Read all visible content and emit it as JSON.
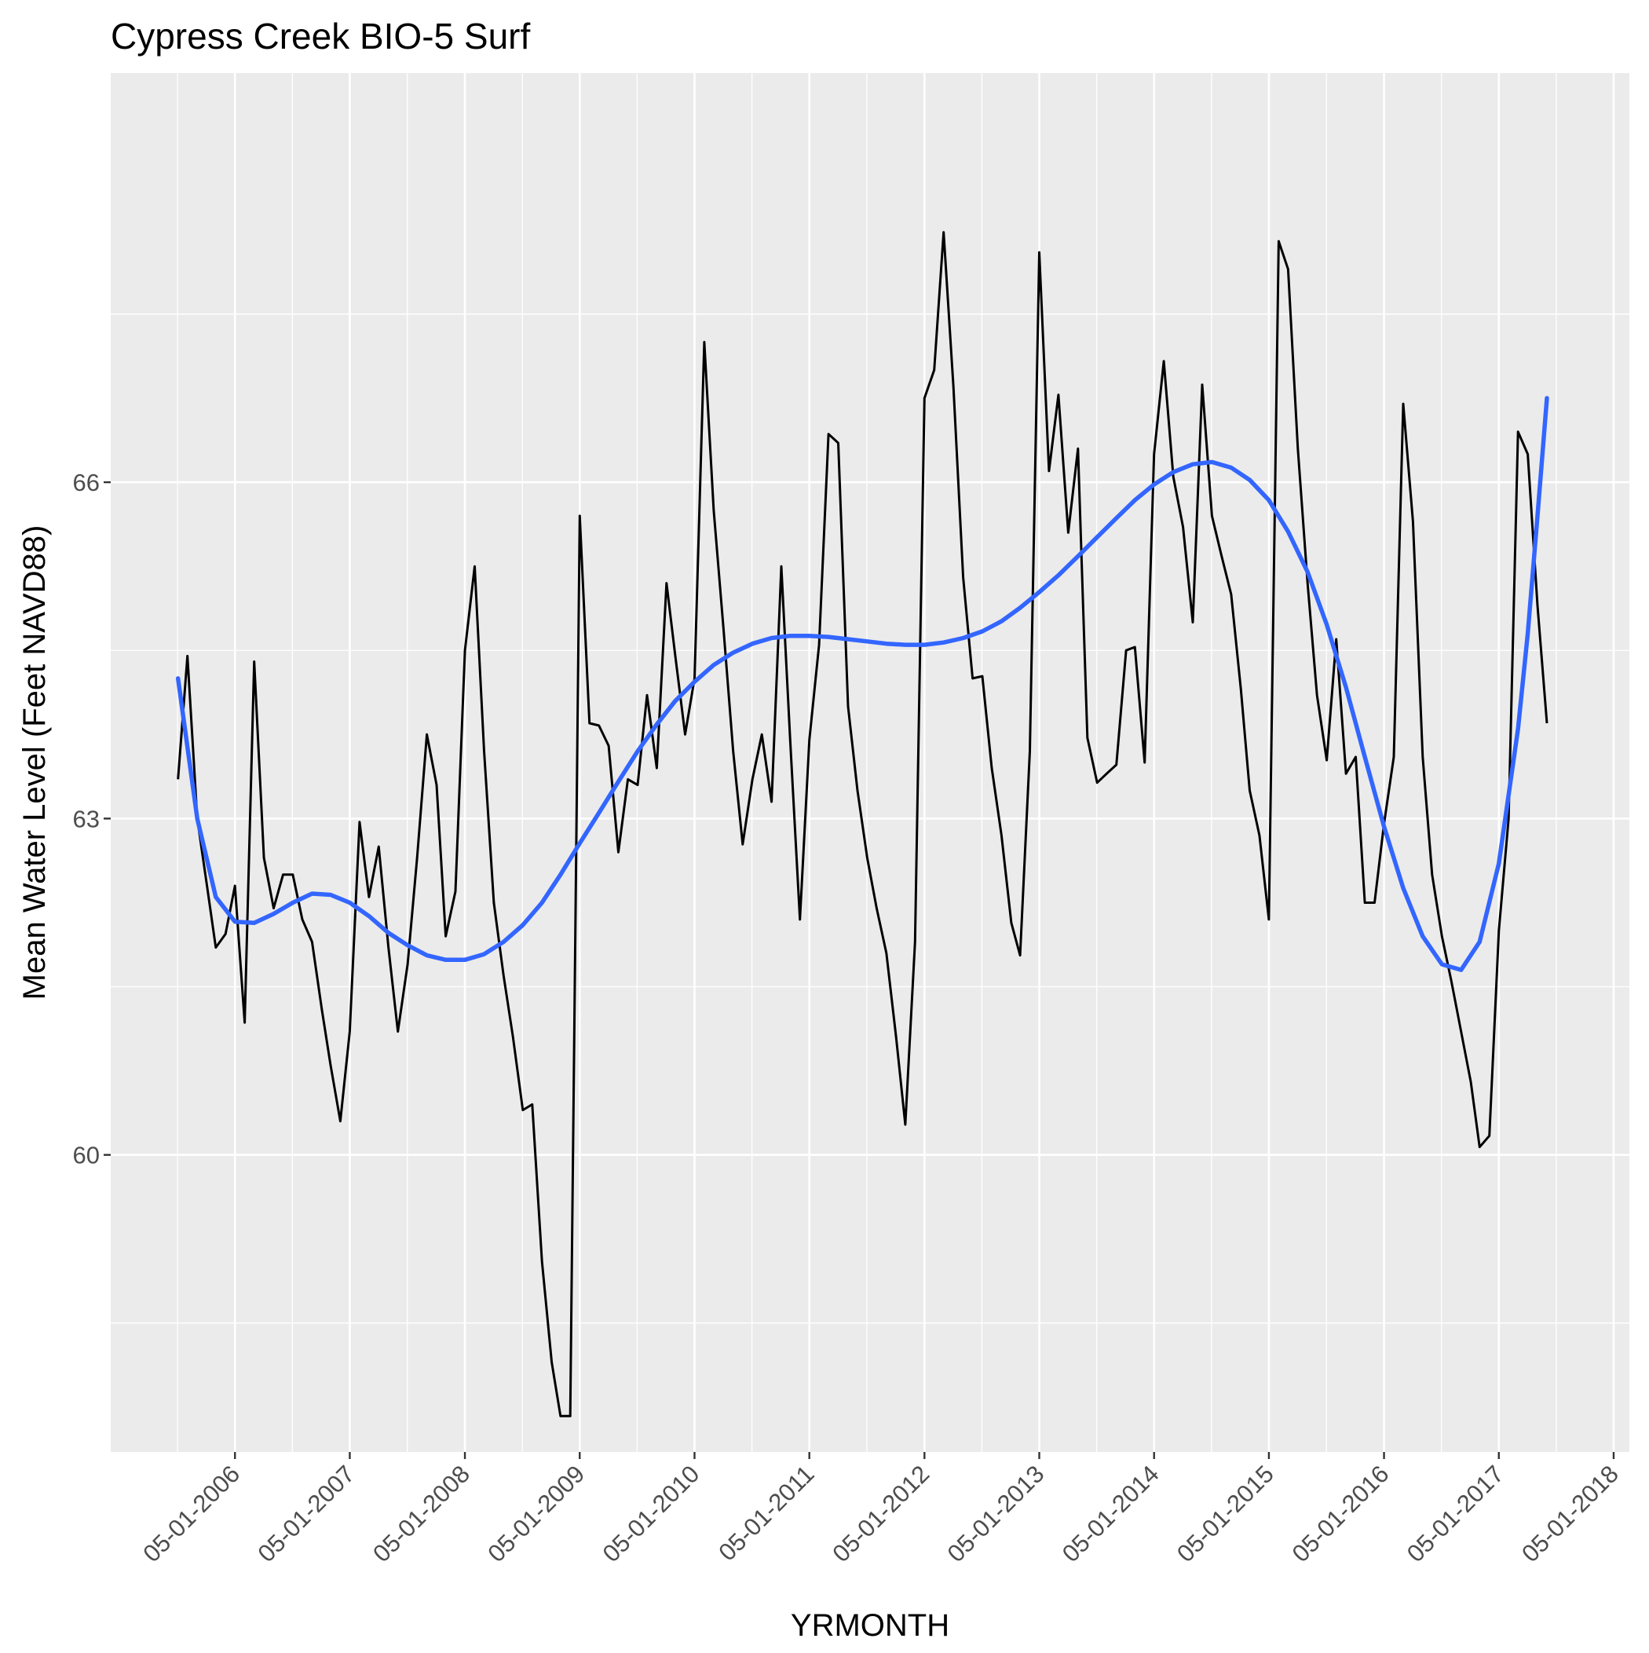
{
  "chart_data": {
    "type": "line",
    "title": "Cypress Creek BIO-5 Surf",
    "xlabel": "YRMONTH",
    "ylabel": "Mean Water Level (Feet NAVD88)",
    "x_type": "date",
    "x_ticks": [
      "05-01-2006",
      "05-01-2007",
      "05-01-2008",
      "05-01-2009",
      "05-01-2010",
      "05-01-2011",
      "05-01-2012",
      "05-01-2013",
      "05-01-2014",
      "05-01-2015",
      "05-01-2016",
      "05-01-2017",
      "05-01-2018"
    ],
    "y_ticks": [
      60,
      63,
      66
    ],
    "ylim": [
      57.35,
      69.65
    ],
    "grid": true,
    "series": [
      {
        "role": "observed",
        "color": "#000000",
        "points": [
          [
            "2005-11-01",
            63.35
          ],
          [
            "2005-12-01",
            64.45
          ],
          [
            "2006-01-01",
            63.0
          ],
          [
            "2006-02-01",
            62.4
          ],
          [
            "2006-03-01",
            61.85
          ],
          [
            "2006-04-01",
            61.97
          ],
          [
            "2006-05-01",
            62.4
          ],
          [
            "2006-06-01",
            61.18
          ],
          [
            "2006-07-01",
            64.4
          ],
          [
            "2006-08-01",
            62.65
          ],
          [
            "2006-09-01",
            62.2
          ],
          [
            "2006-10-01",
            62.5
          ],
          [
            "2006-11-01",
            62.5
          ],
          [
            "2006-12-01",
            62.1
          ],
          [
            "2007-01-01",
            61.9
          ],
          [
            "2007-02-01",
            61.3
          ],
          [
            "2007-03-01",
            60.8
          ],
          [
            "2007-04-01",
            60.3
          ],
          [
            "2007-05-01",
            61.1
          ],
          [
            "2007-06-01",
            62.97
          ],
          [
            "2007-07-01",
            62.3
          ],
          [
            "2007-08-01",
            62.75
          ],
          [
            "2007-09-01",
            61.85
          ],
          [
            "2007-10-01",
            61.1
          ],
          [
            "2007-11-01",
            61.7
          ],
          [
            "2007-12-01",
            62.65
          ],
          [
            "2008-01-01",
            63.75
          ],
          [
            "2008-02-01",
            63.3
          ],
          [
            "2008-03-01",
            61.95
          ],
          [
            "2008-04-01",
            62.35
          ],
          [
            "2008-05-01",
            64.5
          ],
          [
            "2008-06-01",
            65.25
          ],
          [
            "2008-07-01",
            63.6
          ],
          [
            "2008-08-01",
            62.25
          ],
          [
            "2008-09-01",
            61.6
          ],
          [
            "2008-10-01",
            61.05
          ],
          [
            "2008-11-01",
            60.4
          ],
          [
            "2008-12-01",
            60.45
          ],
          [
            "2009-01-01",
            59.05
          ],
          [
            "2009-02-01",
            58.15
          ],
          [
            "2009-03-01",
            57.67
          ],
          [
            "2009-04-01",
            57.67
          ],
          [
            "2009-05-01",
            65.7
          ],
          [
            "2009-06-01",
            63.85
          ],
          [
            "2009-07-01",
            63.83
          ],
          [
            "2009-08-01",
            63.65
          ],
          [
            "2009-09-01",
            62.7
          ],
          [
            "2009-10-01",
            63.35
          ],
          [
            "2009-11-01",
            63.3
          ],
          [
            "2009-12-01",
            64.1
          ],
          [
            "2010-01-01",
            63.45
          ],
          [
            "2010-02-01",
            65.1
          ],
          [
            "2010-03-01",
            64.45
          ],
          [
            "2010-04-01",
            63.75
          ],
          [
            "2010-05-01",
            64.25
          ],
          [
            "2010-06-01",
            67.25
          ],
          [
            "2010-07-01",
            65.75
          ],
          [
            "2010-08-01",
            64.7
          ],
          [
            "2010-09-01",
            63.6
          ],
          [
            "2010-10-01",
            62.77
          ],
          [
            "2010-11-01",
            63.35
          ],
          [
            "2010-12-01",
            63.75
          ],
          [
            "2011-01-01",
            63.15
          ],
          [
            "2011-02-01",
            65.25
          ],
          [
            "2011-03-01",
            63.7
          ],
          [
            "2011-04-01",
            62.1
          ],
          [
            "2011-05-01",
            63.7
          ],
          [
            "2011-06-01",
            64.55
          ],
          [
            "2011-07-01",
            66.43
          ],
          [
            "2011-08-01",
            66.35
          ],
          [
            "2011-09-01",
            64.0
          ],
          [
            "2011-10-01",
            63.25
          ],
          [
            "2011-11-01",
            62.65
          ],
          [
            "2011-12-01",
            62.2
          ],
          [
            "2012-01-01",
            61.8
          ],
          [
            "2012-02-01",
            61.05
          ],
          [
            "2012-03-01",
            60.27
          ],
          [
            "2012-04-01",
            61.9
          ],
          [
            "2012-05-01",
            66.75
          ],
          [
            "2012-06-01",
            67.0
          ],
          [
            "2012-07-01",
            68.23
          ],
          [
            "2012-08-01",
            66.85
          ],
          [
            "2012-09-01",
            65.15
          ],
          [
            "2012-10-01",
            64.25
          ],
          [
            "2012-11-01",
            64.27
          ],
          [
            "2012-12-01",
            63.45
          ],
          [
            "2013-01-01",
            62.85
          ],
          [
            "2013-02-01",
            62.07
          ],
          [
            "2013-03-01",
            61.78
          ],
          [
            "2013-04-01",
            63.6
          ],
          [
            "2013-05-01",
            68.05
          ],
          [
            "2013-06-01",
            66.1
          ],
          [
            "2013-07-01",
            66.78
          ],
          [
            "2013-08-01",
            65.55
          ],
          [
            "2013-09-01",
            66.3
          ],
          [
            "2013-10-01",
            63.72
          ],
          [
            "2013-11-01",
            63.32
          ],
          [
            "2013-12-01",
            63.4
          ],
          [
            "2014-01-01",
            63.48
          ],
          [
            "2014-02-01",
            64.5
          ],
          [
            "2014-03-01",
            64.53
          ],
          [
            "2014-04-01",
            63.5
          ],
          [
            "2014-05-01",
            66.25
          ],
          [
            "2014-06-01",
            67.08
          ],
          [
            "2014-07-01",
            66.05
          ],
          [
            "2014-08-01",
            65.6
          ],
          [
            "2014-09-01",
            64.75
          ],
          [
            "2014-10-01",
            66.87
          ],
          [
            "2014-11-01",
            65.7
          ],
          [
            "2014-12-01",
            65.35
          ],
          [
            "2015-01-01",
            65.0
          ],
          [
            "2015-02-01",
            64.15
          ],
          [
            "2015-03-01",
            63.25
          ],
          [
            "2015-04-01",
            62.85
          ],
          [
            "2015-05-01",
            62.1
          ],
          [
            "2015-06-01",
            68.15
          ],
          [
            "2015-07-01",
            67.9
          ],
          [
            "2015-08-01",
            66.3
          ],
          [
            "2015-09-01",
            65.1
          ],
          [
            "2015-10-01",
            64.1
          ],
          [
            "2015-11-01",
            63.52
          ],
          [
            "2015-12-01",
            64.6
          ],
          [
            "2016-01-01",
            63.4
          ],
          [
            "2016-02-01",
            63.55
          ],
          [
            "2016-03-01",
            62.25
          ],
          [
            "2016-04-01",
            62.25
          ],
          [
            "2016-05-01",
            62.95
          ],
          [
            "2016-06-01",
            63.55
          ],
          [
            "2016-07-01",
            66.7
          ],
          [
            "2016-08-01",
            65.65
          ],
          [
            "2016-09-01",
            63.55
          ],
          [
            "2016-10-01",
            62.5
          ],
          [
            "2016-11-01",
            61.95
          ],
          [
            "2016-12-01",
            61.55
          ],
          [
            "2017-01-01",
            61.1
          ],
          [
            "2017-02-01",
            60.65
          ],
          [
            "2017-03-01",
            60.07
          ],
          [
            "2017-04-01",
            60.17
          ],
          [
            "2017-05-01",
            62.0
          ],
          [
            "2017-06-01",
            63.0
          ],
          [
            "2017-07-01",
            66.45
          ],
          [
            "2017-08-01",
            66.25
          ],
          [
            "2017-09-01",
            64.9
          ],
          [
            "2017-10-01",
            63.85
          ]
        ]
      },
      {
        "role": "smooth",
        "color": "#3366FF",
        "points": [
          [
            "2005-11-01",
            64.25
          ],
          [
            "2006-01-01",
            63.0
          ],
          [
            "2006-03-01",
            62.3
          ],
          [
            "2006-05-01",
            62.08
          ],
          [
            "2006-07-01",
            62.07
          ],
          [
            "2006-09-01",
            62.15
          ],
          [
            "2006-11-01",
            62.25
          ],
          [
            "2007-01-01",
            62.33
          ],
          [
            "2007-03-01",
            62.32
          ],
          [
            "2007-05-01",
            62.25
          ],
          [
            "2007-07-01",
            62.13
          ],
          [
            "2007-09-01",
            61.98
          ],
          [
            "2007-11-01",
            61.87
          ],
          [
            "2008-01-01",
            61.78
          ],
          [
            "2008-03-01",
            61.74
          ],
          [
            "2008-05-01",
            61.74
          ],
          [
            "2008-07-01",
            61.79
          ],
          [
            "2008-09-01",
            61.9
          ],
          [
            "2008-11-01",
            62.05
          ],
          [
            "2009-01-01",
            62.25
          ],
          [
            "2009-03-01",
            62.5
          ],
          [
            "2009-05-01",
            62.78
          ],
          [
            "2009-07-01",
            63.05
          ],
          [
            "2009-09-01",
            63.33
          ],
          [
            "2009-11-01",
            63.6
          ],
          [
            "2010-01-01",
            63.84
          ],
          [
            "2010-03-01",
            64.05
          ],
          [
            "2010-05-01",
            64.22
          ],
          [
            "2010-07-01",
            64.37
          ],
          [
            "2010-09-01",
            64.48
          ],
          [
            "2010-11-01",
            64.56
          ],
          [
            "2011-01-01",
            64.61
          ],
          [
            "2011-03-01",
            64.63
          ],
          [
            "2011-05-01",
            64.63
          ],
          [
            "2011-07-01",
            64.62
          ],
          [
            "2011-09-01",
            64.6
          ],
          [
            "2011-11-01",
            64.58
          ],
          [
            "2012-01-01",
            64.56
          ],
          [
            "2012-03-01",
            64.55
          ],
          [
            "2012-05-01",
            64.55
          ],
          [
            "2012-07-01",
            64.57
          ],
          [
            "2012-09-01",
            64.61
          ],
          [
            "2012-11-01",
            64.67
          ],
          [
            "2013-01-01",
            64.76
          ],
          [
            "2013-03-01",
            64.88
          ],
          [
            "2013-05-01",
            65.02
          ],
          [
            "2013-07-01",
            65.17
          ],
          [
            "2013-09-01",
            65.34
          ],
          [
            "2013-11-01",
            65.51
          ],
          [
            "2014-01-01",
            65.68
          ],
          [
            "2014-03-01",
            65.84
          ],
          [
            "2014-05-01",
            65.98
          ],
          [
            "2014-07-01",
            66.09
          ],
          [
            "2014-09-01",
            66.16
          ],
          [
            "2014-11-01",
            66.18
          ],
          [
            "2015-01-01",
            66.13
          ],
          [
            "2015-03-01",
            66.02
          ],
          [
            "2015-05-01",
            65.84
          ],
          [
            "2015-07-01",
            65.56
          ],
          [
            "2015-09-01",
            65.2
          ],
          [
            "2015-11-01",
            64.73
          ],
          [
            "2016-01-01",
            64.17
          ],
          [
            "2016-03-01",
            63.55
          ],
          [
            "2016-05-01",
            62.93
          ],
          [
            "2016-07-01",
            62.38
          ],
          [
            "2016-09-01",
            61.95
          ],
          [
            "2016-11-01",
            61.7
          ],
          [
            "2017-01-01",
            61.65
          ],
          [
            "2017-03-01",
            61.9
          ],
          [
            "2017-05-01",
            62.6
          ],
          [
            "2017-07-01",
            63.8
          ],
          [
            "2017-08-01",
            64.65
          ],
          [
            "2017-09-01",
            65.7
          ],
          [
            "2017-10-01",
            66.75
          ]
        ]
      }
    ]
  }
}
